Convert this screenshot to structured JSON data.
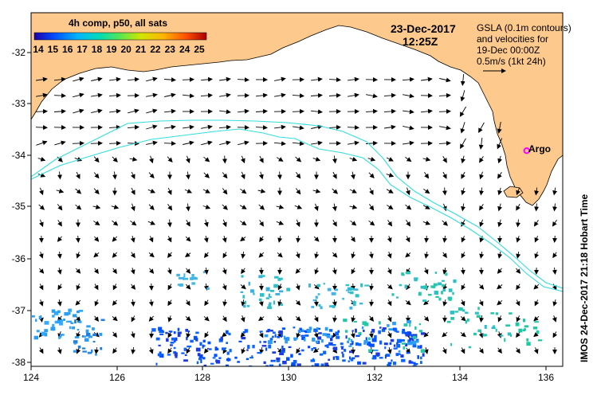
{
  "colorbar": {
    "title": "4h comp, p50, all sats",
    "ticks": [
      "14",
      "15",
      "16",
      "17",
      "18",
      "19",
      "20",
      "21",
      "22",
      "23",
      "24",
      "25"
    ]
  },
  "date_label": "23-Dec-2017",
  "time_label": "12:25Z",
  "legend": {
    "line1": "GSLA (0.1m contours)",
    "line2": "and velocities for",
    "line3": "19-Dec 00:00Z",
    "line4": "0.5m/s (1kt 24h)"
  },
  "axes": {
    "lat_ticks": [
      "-32",
      "-33",
      "-34",
      "-35",
      "-36",
      "-37",
      "-38"
    ],
    "lon_ticks": [
      "124",
      "126",
      "128",
      "130",
      "132",
      "134",
      "136"
    ]
  },
  "marker": {
    "label": "Argo",
    "lon": 135.55,
    "lat": -33.9,
    "color": "#ff00ff"
  },
  "credit": "IMOS 24-Dec-2017 21:18 Hobart Time",
  "colors": {
    "land": "#fdc98c",
    "contour": "#33dddd",
    "ocean": "#ffffff"
  }
}
